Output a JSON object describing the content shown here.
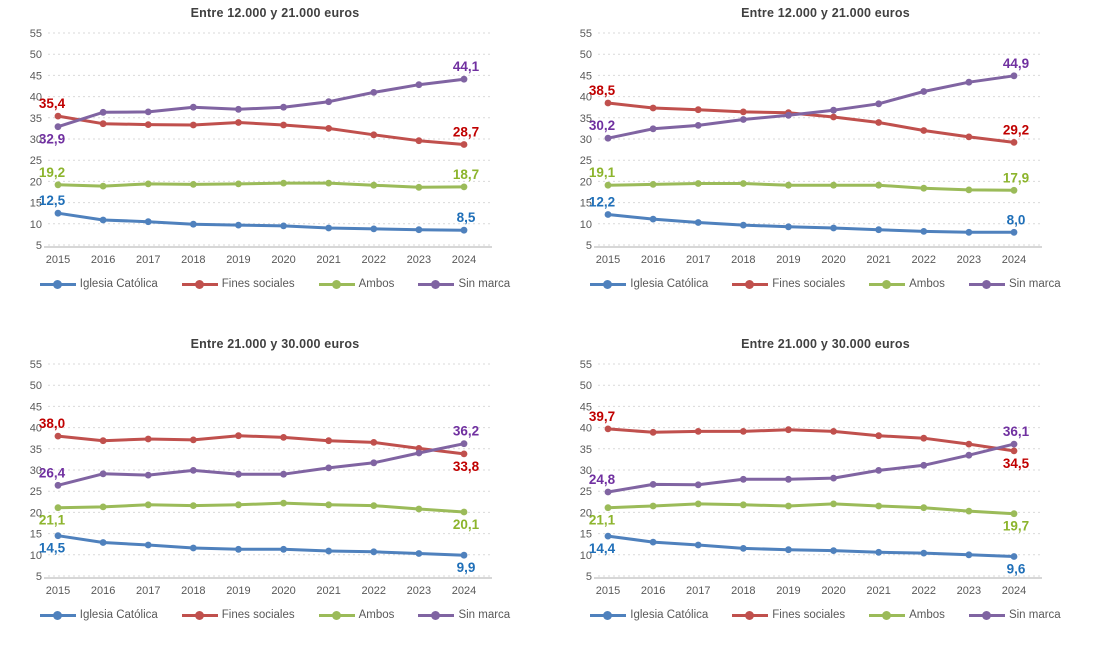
{
  "axis": {
    "ymin": 5,
    "ymax": 55,
    "ystep": 5,
    "y_ticks": [
      "55",
      "50",
      "45",
      "40",
      "35",
      "30",
      "25",
      "20",
      "15",
      "10",
      "5"
    ],
    "x_labels": [
      "2015",
      "2016",
      "2017",
      "2018",
      "2019",
      "2020",
      "2021",
      "2022",
      "2023",
      "2024"
    ],
    "grid_color": "#D9D9D9",
    "axis_line_color": "#BFBFBF",
    "tick_color": "#595959",
    "title_color": "#404040",
    "legend_text_color": "#595959",
    "grid": true,
    "legend_position": "bottom"
  },
  "chart_data": [
    {
      "type": "line",
      "title": "Entre 12.000 y 21.000 euros",
      "x": [
        "2015",
        "2016",
        "2017",
        "2018",
        "2019",
        "2020",
        "2021",
        "2022",
        "2023",
        "2024"
      ],
      "ylim": [
        5,
        55
      ],
      "series": [
        {
          "name": "Iglesia Católica",
          "color": "#4F81BD",
          "label_color": "#1F6FB8",
          "values": [
            12.5,
            10.9,
            10.5,
            9.9,
            9.7,
            9.5,
            9.0,
            8.8,
            8.6,
            8.5
          ],
          "start_label": "12,5",
          "end_label": "8,5",
          "start_label_pos": "above",
          "end_label_pos": "above"
        },
        {
          "name": "Fines sociales",
          "color": "#C0504D",
          "label_color": "#C00000",
          "values": [
            35.4,
            33.6,
            33.4,
            33.3,
            33.9,
            33.3,
            32.5,
            31.0,
            29.6,
            28.7
          ],
          "start_label": "35,4",
          "end_label": "28,7",
          "start_label_pos": "above",
          "end_label_pos": "above"
        },
        {
          "name": "Ambos",
          "color": "#9BBB59",
          "label_color": "#8CB42C",
          "values": [
            19.2,
            18.9,
            19.4,
            19.3,
            19.4,
            19.6,
            19.6,
            19.1,
            18.6,
            18.7
          ],
          "start_label": "19,2",
          "end_label": "18,7",
          "start_label_pos": "above",
          "end_label_pos": "above"
        },
        {
          "name": "Sin marca",
          "color": "#8064A2",
          "label_color": "#7030A0",
          "values": [
            32.9,
            36.3,
            36.4,
            37.5,
            37.0,
            37.5,
            38.8,
            41.0,
            42.8,
            44.1
          ],
          "start_label": "32,9",
          "end_label": "44,1",
          "start_label_pos": "below",
          "end_label_pos": "above"
        }
      ]
    },
    {
      "type": "line",
      "title": "Entre 12.000 y 21.000 euros",
      "x": [
        "2015",
        "2016",
        "2017",
        "2018",
        "2019",
        "2020",
        "2021",
        "2022",
        "2023",
        "2024"
      ],
      "ylim": [
        5,
        55
      ],
      "series": [
        {
          "name": "Iglesia Católica",
          "color": "#4F81BD",
          "label_color": "#1F6FB8",
          "values": [
            12.2,
            11.1,
            10.3,
            9.7,
            9.3,
            9.0,
            8.6,
            8.2,
            8.0,
            8.0
          ],
          "start_label": "12,2",
          "end_label": "8,0",
          "start_label_pos": "above",
          "end_label_pos": "above"
        },
        {
          "name": "Fines sociales",
          "color": "#C0504D",
          "label_color": "#C00000",
          "values": [
            38.5,
            37.3,
            36.9,
            36.4,
            36.2,
            35.2,
            33.9,
            32.0,
            30.5,
            29.2
          ],
          "start_label": "38,5",
          "end_label": "29,2",
          "start_label_pos": "above",
          "end_label_pos": "above"
        },
        {
          "name": "Ambos",
          "color": "#9BBB59",
          "label_color": "#8CB42C",
          "values": [
            19.1,
            19.3,
            19.5,
            19.5,
            19.1,
            19.1,
            19.1,
            18.4,
            18.0,
            17.9
          ],
          "start_label": "19,1",
          "end_label": "17,9",
          "start_label_pos": "above",
          "end_label_pos": "above"
        },
        {
          "name": "Sin marca",
          "color": "#8064A2",
          "label_color": "#7030A0",
          "values": [
            30.2,
            32.4,
            33.2,
            34.6,
            35.6,
            36.8,
            38.3,
            41.2,
            43.4,
            44.9
          ],
          "start_label": "30,2",
          "end_label": "44,9",
          "start_label_pos": "above",
          "end_label_pos": "above"
        }
      ]
    },
    {
      "type": "line",
      "title": "Entre 21.000 y 30.000 euros",
      "x": [
        "2015",
        "2016",
        "2017",
        "2018",
        "2019",
        "2020",
        "2021",
        "2022",
        "2023",
        "2024"
      ],
      "ylim": [
        5,
        55
      ],
      "series": [
        {
          "name": "Iglesia Católica",
          "color": "#4F81BD",
          "label_color": "#1F6FB8",
          "values": [
            14.5,
            12.9,
            12.3,
            11.6,
            11.3,
            11.3,
            10.9,
            10.7,
            10.3,
            9.9
          ],
          "start_label": "14,5",
          "end_label": "9,9",
          "start_label_pos": "below",
          "end_label_pos": "below"
        },
        {
          "name": "Fines sociales",
          "color": "#C0504D",
          "label_color": "#C00000",
          "values": [
            38.0,
            36.9,
            37.3,
            37.1,
            38.1,
            37.7,
            36.9,
            36.5,
            35.1,
            33.8
          ],
          "start_label": "38,0",
          "end_label": "33,8",
          "start_label_pos": "above",
          "end_label_pos": "below"
        },
        {
          "name": "Ambos",
          "color": "#9BBB59",
          "label_color": "#8CB42C",
          "values": [
            21.1,
            21.3,
            21.8,
            21.6,
            21.8,
            22.2,
            21.8,
            21.6,
            20.8,
            20.1
          ],
          "start_label": "21,1",
          "end_label": "20,1",
          "start_label_pos": "below",
          "end_label_pos": "below"
        },
        {
          "name": "Sin marca",
          "color": "#8064A2",
          "label_color": "#7030A0",
          "values": [
            26.4,
            29.1,
            28.8,
            29.9,
            29.0,
            29.0,
            30.5,
            31.7,
            34.0,
            36.2
          ],
          "start_label": "26,4",
          "end_label": "36,2",
          "start_label_pos": "above",
          "end_label_pos": "above"
        }
      ]
    },
    {
      "type": "line",
      "title": "Entre 21.000 y 30.000 euros",
      "x": [
        "2015",
        "2016",
        "2017",
        "2018",
        "2019",
        "2020",
        "2021",
        "2022",
        "2023",
        "2024"
      ],
      "ylim": [
        5,
        55
      ],
      "series": [
        {
          "name": "Iglesia Católica",
          "color": "#4F81BD",
          "label_color": "#1F6FB8",
          "values": [
            14.4,
            13.0,
            12.3,
            11.5,
            11.2,
            11.0,
            10.6,
            10.4,
            10.0,
            9.6
          ],
          "start_label": "14,4",
          "end_label": "9,6",
          "start_label_pos": "below",
          "end_label_pos": "below"
        },
        {
          "name": "Fines sociales",
          "color": "#C0504D",
          "label_color": "#C00000",
          "values": [
            39.7,
            38.9,
            39.1,
            39.1,
            39.5,
            39.1,
            38.1,
            37.5,
            36.1,
            34.5
          ],
          "start_label": "39,7",
          "end_label": "34,5",
          "start_label_pos": "above",
          "end_label_pos": "below"
        },
        {
          "name": "Ambos",
          "color": "#9BBB59",
          "label_color": "#8CB42C",
          "values": [
            21.1,
            21.5,
            22.0,
            21.8,
            21.5,
            22.0,
            21.5,
            21.1,
            20.3,
            19.7
          ],
          "start_label": "21,1",
          "end_label": "19,7",
          "start_label_pos": "below",
          "end_label_pos": "below"
        },
        {
          "name": "Sin marca",
          "color": "#8064A2",
          "label_color": "#7030A0",
          "values": [
            24.8,
            26.6,
            26.5,
            27.8,
            27.8,
            28.1,
            29.9,
            31.1,
            33.5,
            36.1
          ],
          "start_label": "24,8",
          "end_label": "36,1",
          "start_label_pos": "above",
          "end_label_pos": "above"
        }
      ]
    }
  ]
}
